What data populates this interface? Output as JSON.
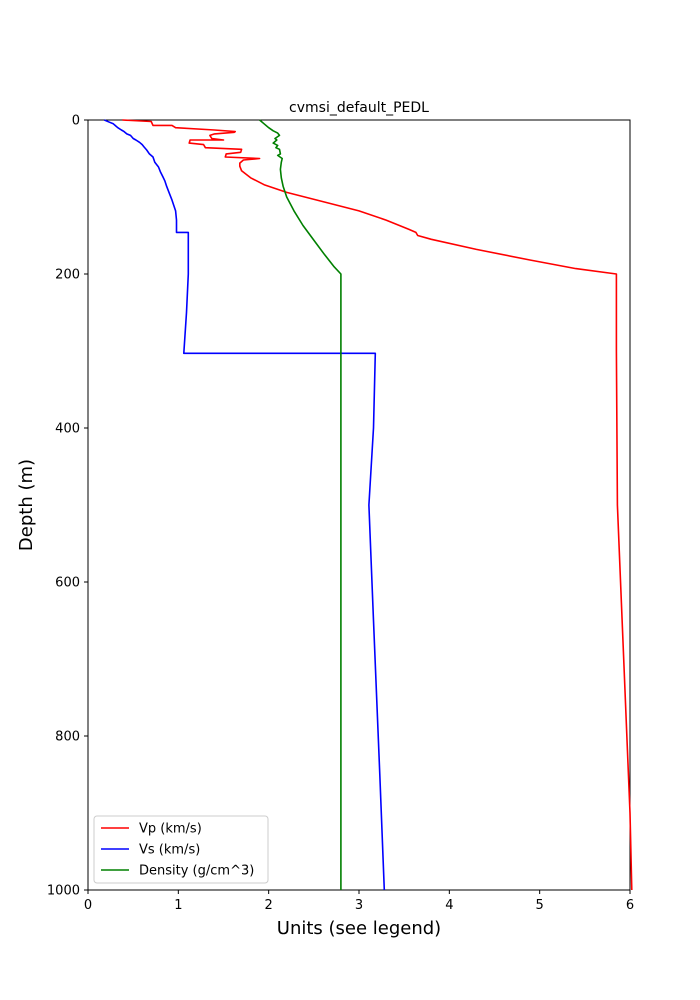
{
  "chart_data": {
    "type": "line",
    "title": "cvmsi_default_PEDL",
    "xlabel": "Units (see legend)",
    "ylabel": "Depth (m)",
    "xlim": [
      0,
      6
    ],
    "ylim": [
      1000,
      0
    ],
    "y_inverted": true,
    "grid": false,
    "legend_position": "lower-left",
    "xticks": [
      "0",
      "1",
      "2",
      "3",
      "4",
      "5",
      "6"
    ],
    "yticks": [
      "0",
      "200",
      "400",
      "600",
      "800",
      "1000"
    ],
    "series": [
      {
        "name": "Vp (km/s)",
        "color": "#ff0000",
        "points": [
          [
            0.38,
            0
          ],
          [
            0.7,
            2
          ],
          [
            0.72,
            7
          ],
          [
            0.93,
            7
          ],
          [
            0.97,
            10
          ],
          [
            1.4,
            13
          ],
          [
            1.63,
            15
          ],
          [
            1.62,
            16
          ],
          [
            1.4,
            18
          ],
          [
            1.35,
            20
          ],
          [
            1.37,
            24
          ],
          [
            1.5,
            26
          ],
          [
            1.13,
            26
          ],
          [
            1.12,
            30
          ],
          [
            1.28,
            32
          ],
          [
            1.3,
            36
          ],
          [
            1.7,
            38
          ],
          [
            1.69,
            42
          ],
          [
            1.53,
            44
          ],
          [
            1.52,
            48
          ],
          [
            1.9,
            50
          ],
          [
            1.72,
            52
          ],
          [
            1.68,
            56
          ],
          [
            1.68,
            60
          ],
          [
            1.7,
            66
          ],
          [
            1.8,
            75
          ],
          [
            1.95,
            84
          ],
          [
            2.2,
            94
          ],
          [
            2.6,
            106
          ],
          [
            3.0,
            118
          ],
          [
            3.3,
            130
          ],
          [
            3.55,
            142
          ],
          [
            3.63,
            146
          ],
          [
            3.65,
            150
          ],
          [
            3.8,
            155
          ],
          [
            4.3,
            168
          ],
          [
            4.9,
            182
          ],
          [
            5.4,
            193
          ],
          [
            5.85,
            200
          ],
          [
            5.85,
            300
          ],
          [
            5.86,
            500
          ],
          [
            5.93,
            700
          ],
          [
            6.0,
            900
          ],
          [
            6.02,
            1000
          ]
        ]
      },
      {
        "name": "Vs (km/s)",
        "color": "#0000ff",
        "points": [
          [
            0.18,
            0
          ],
          [
            0.24,
            3
          ],
          [
            0.28,
            5
          ],
          [
            0.3,
            7
          ],
          [
            0.33,
            10
          ],
          [
            0.37,
            13
          ],
          [
            0.4,
            15
          ],
          [
            0.43,
            18
          ],
          [
            0.47,
            20
          ],
          [
            0.5,
            24
          ],
          [
            0.53,
            26
          ],
          [
            0.57,
            29
          ],
          [
            0.6,
            32
          ],
          [
            0.62,
            35
          ],
          [
            0.65,
            39
          ],
          [
            0.68,
            44
          ],
          [
            0.72,
            48
          ],
          [
            0.74,
            55
          ],
          [
            0.78,
            61
          ],
          [
            0.8,
            67
          ],
          [
            0.83,
            74
          ],
          [
            0.85,
            79
          ],
          [
            0.87,
            86
          ],
          [
            0.9,
            95
          ],
          [
            0.93,
            104
          ],
          [
            0.95,
            111
          ],
          [
            0.97,
            118
          ],
          [
            0.98,
            130
          ],
          [
            0.98,
            146
          ],
          [
            1.11,
            146
          ],
          [
            1.11,
            200
          ],
          [
            1.09,
            250
          ],
          [
            1.06,
            303
          ],
          [
            3.18,
            303
          ],
          [
            3.16,
            400
          ],
          [
            3.11,
            500
          ],
          [
            3.16,
            650
          ],
          [
            3.23,
            850
          ],
          [
            3.28,
            1000
          ]
        ]
      },
      {
        "name": "Density (g/cm^3)",
        "color": "#008000",
        "points": [
          [
            1.9,
            0
          ],
          [
            1.95,
            5
          ],
          [
            2.0,
            10
          ],
          [
            2.05,
            14
          ],
          [
            2.1,
            17
          ],
          [
            2.12,
            20
          ],
          [
            2.07,
            24
          ],
          [
            2.09,
            26
          ],
          [
            2.05,
            30
          ],
          [
            2.1,
            33
          ],
          [
            2.08,
            36
          ],
          [
            2.12,
            38
          ],
          [
            2.13,
            44
          ],
          [
            2.1,
            46
          ],
          [
            2.15,
            50
          ],
          [
            2.14,
            55
          ],
          [
            2.13,
            64
          ],
          [
            2.14,
            75
          ],
          [
            2.16,
            86
          ],
          [
            2.2,
            100
          ],
          [
            2.28,
            118
          ],
          [
            2.38,
            137
          ],
          [
            2.5,
            156
          ],
          [
            2.62,
            175
          ],
          [
            2.72,
            190
          ],
          [
            2.8,
            200
          ],
          [
            2.8,
            400
          ],
          [
            2.8,
            600
          ],
          [
            2.8,
            800
          ],
          [
            2.8,
            1000
          ]
        ]
      }
    ]
  }
}
